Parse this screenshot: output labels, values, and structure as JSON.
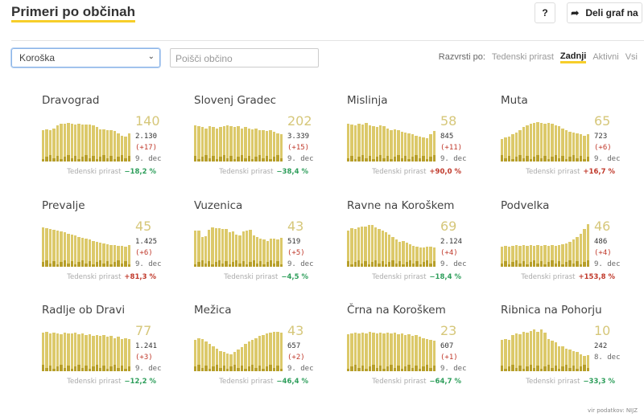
{
  "header": {
    "title": "Primeri po občinah",
    "help_label": "?",
    "share_label": "Deli graf na"
  },
  "filters": {
    "region": "Koroška",
    "search_placeholder": "Poišči občino"
  },
  "sort": {
    "label": "Razvrsti po:",
    "options": [
      "Tedenski prirast",
      "Zadnji",
      "Aktivni",
      "Vsi"
    ],
    "active": "Zadnji"
  },
  "weekly_label": "Tedenski prirast",
  "colors": {
    "bar": "#dcc96a",
    "bar_dark": "#b79f2a",
    "accent": "#f7ce2a",
    "negative": "#2e9e5b",
    "positive": "#c0392b"
  },
  "cards": [
    {
      "name": "Dravograd",
      "active": "140",
      "total": "2.130",
      "increase": "(+17)",
      "date": "9. dec",
      "weekly": "−18,2 %",
      "trend": "neg",
      "bars": [
        70,
        71,
        70,
        74,
        80,
        84,
        84,
        86,
        84,
        82,
        84,
        82,
        82,
        82,
        80,
        76,
        72,
        72,
        70,
        70,
        68,
        62,
        58,
        56,
        62
      ]
    },
    {
      "name": "Slovenj Gradec",
      "active": "202",
      "total": "3.339",
      "increase": "(+15)",
      "date": "9. dec",
      "weekly": "−38,4 %",
      "trend": "neg",
      "bars": [
        80,
        78,
        76,
        74,
        78,
        76,
        74,
        76,
        78,
        80,
        78,
        76,
        78,
        74,
        76,
        74,
        72,
        74,
        70,
        70,
        68,
        70,
        66,
        62,
        60
      ]
    },
    {
      "name": "Mislinja",
      "active": "58",
      "total": "845",
      "increase": "(+11)",
      "date": "9. dec",
      "weekly": "+90,0 %",
      "trend": "pos",
      "bars": [
        84,
        82,
        80,
        84,
        82,
        86,
        80,
        78,
        76,
        80,
        78,
        74,
        70,
        72,
        70,
        66,
        64,
        62,
        60,
        58,
        56,
        54,
        52,
        60,
        68
      ]
    },
    {
      "name": "Muta",
      "active": "65",
      "total": "723",
      "increase": "(+6)",
      "date": "9. dec",
      "weekly": "+16,7 %",
      "trend": "pos",
      "bars": [
        50,
        54,
        56,
        60,
        64,
        70,
        76,
        80,
        84,
        86,
        88,
        86,
        84,
        86,
        84,
        80,
        78,
        74,
        70,
        66,
        64,
        62,
        60,
        58,
        60
      ]
    },
    {
      "name": "Prevalje",
      "active": "45",
      "total": "1.425",
      "increase": "(+6)",
      "date": "9. dec",
      "weekly": "+81,3 %",
      "trend": "pos",
      "bars": [
        88,
        86,
        84,
        82,
        80,
        78,
        76,
        74,
        72,
        70,
        66,
        64,
        62,
        60,
        58,
        56,
        54,
        52,
        50,
        48,
        48,
        46,
        46,
        44,
        48
      ]
    },
    {
      "name": "Vuzenica",
      "active": "43",
      "total": "519",
      "increase": "(+5)",
      "date": "9. dec",
      "weekly": "−4,5 %",
      "trend": "neg",
      "bars": [
        80,
        80,
        66,
        68,
        82,
        88,
        86,
        86,
        84,
        84,
        76,
        78,
        72,
        70,
        78,
        80,
        82,
        70,
        66,
        62,
        60,
        58,
        62,
        62,
        60,
        64
      ]
    },
    {
      "name": "Ravne na Koroškem",
      "active": "69",
      "total": "2.124",
      "increase": "(+4)",
      "date": "9. dec",
      "weekly": "−18,4 %",
      "trend": "neg",
      "bars": [
        80,
        86,
        84,
        88,
        90,
        90,
        92,
        92,
        88,
        84,
        80,
        76,
        72,
        66,
        60,
        56,
        58,
        54,
        50,
        46,
        44,
        42,
        42,
        44,
        44,
        42
      ]
    },
    {
      "name": "Podvelka",
      "active": "46",
      "total": "486",
      "increase": "(+4)",
      "date": "9. dec",
      "weekly": "+153,8 %",
      "trend": "pos",
      "bars": [
        44,
        46,
        44,
        46,
        48,
        46,
        48,
        46,
        48,
        46,
        48,
        46,
        48,
        46,
        48,
        46,
        48,
        50,
        52,
        56,
        60,
        66,
        74,
        84,
        94
      ]
    },
    {
      "name": "Radlje ob Dravi",
      "active": "77",
      "total": "1.241",
      "increase": "(+3)",
      "date": "9. dec",
      "weekly": "−12,2 %",
      "trend": "neg",
      "bars": [
        86,
        88,
        84,
        86,
        84,
        82,
        86,
        84,
        84,
        86,
        82,
        84,
        80,
        82,
        78,
        80,
        78,
        80,
        76,
        78,
        74,
        76,
        72,
        74,
        72
      ]
    },
    {
      "name": "Mežica",
      "active": "43",
      "total": "657",
      "increase": "(+2)",
      "date": "9. dec",
      "weekly": "−46,4 %",
      "trend": "neg",
      "bars": [
        70,
        74,
        72,
        66,
        60,
        56,
        50,
        44,
        42,
        40,
        38,
        42,
        48,
        54,
        60,
        66,
        70,
        74,
        78,
        80,
        84,
        86,
        88,
        88,
        86
      ]
    },
    {
      "name": "Črna na Koroškem",
      "active": "23",
      "total": "607",
      "increase": "(+1)",
      "date": "9. dec",
      "weekly": "−64,7 %",
      "trend": "neg",
      "bars": [
        82,
        84,
        86,
        84,
        86,
        84,
        88,
        86,
        84,
        86,
        84,
        86,
        84,
        86,
        82,
        84,
        80,
        82,
        78,
        80,
        76,
        74,
        72,
        70,
        68
      ]
    },
    {
      "name": "Ribnica na Pohorju",
      "active": "10",
      "total": "242",
      "date": "8. dec",
      "weekly": "−33,3 %",
      "trend": "neg",
      "bars": [
        70,
        72,
        70,
        80,
        84,
        82,
        88,
        86,
        90,
        92,
        88,
        92,
        86,
        72,
        68,
        64,
        56,
        56,
        50,
        48,
        44,
        42,
        38,
        34,
        36
      ]
    }
  ],
  "footer": "vir podatkov: NIJZ"
}
